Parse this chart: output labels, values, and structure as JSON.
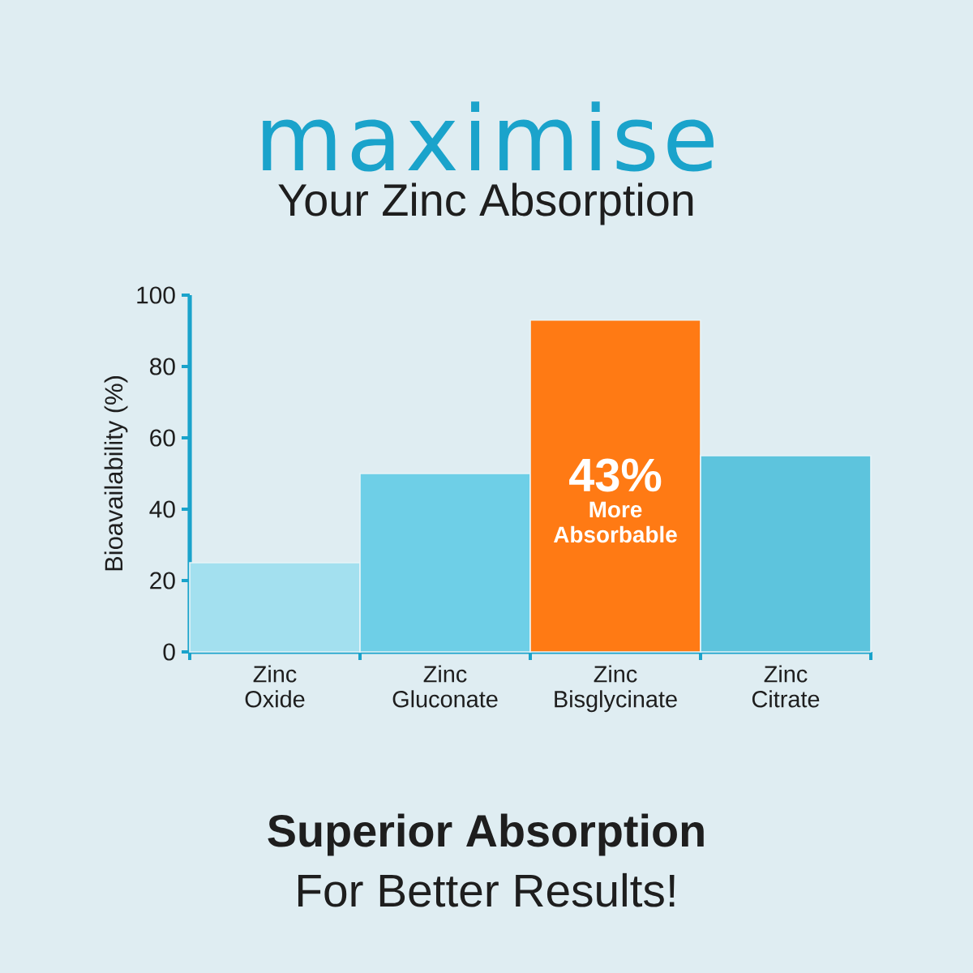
{
  "chart_data": {
    "type": "bar",
    "title": "maximise",
    "subtitle": "Your Zinc Absorption",
    "ylabel": "Bioavailability (%)",
    "categories": [
      "Zinc Oxide",
      "Zinc Gluconate",
      "Zinc Bisglycinate",
      "Zinc Citrate"
    ],
    "values": [
      25,
      50,
      93,
      55
    ],
    "colors": [
      "#a3e0ef",
      "#6ecfe7",
      "#ff7a14",
      "#5dc4dd"
    ],
    "ylim": [
      0,
      100
    ],
    "yticks": [
      0,
      20,
      40,
      60,
      80,
      100
    ],
    "annotations": [
      "43%",
      "More Absorbable",
      "Superior Absorption",
      "For Better Results!"
    ]
  }
}
